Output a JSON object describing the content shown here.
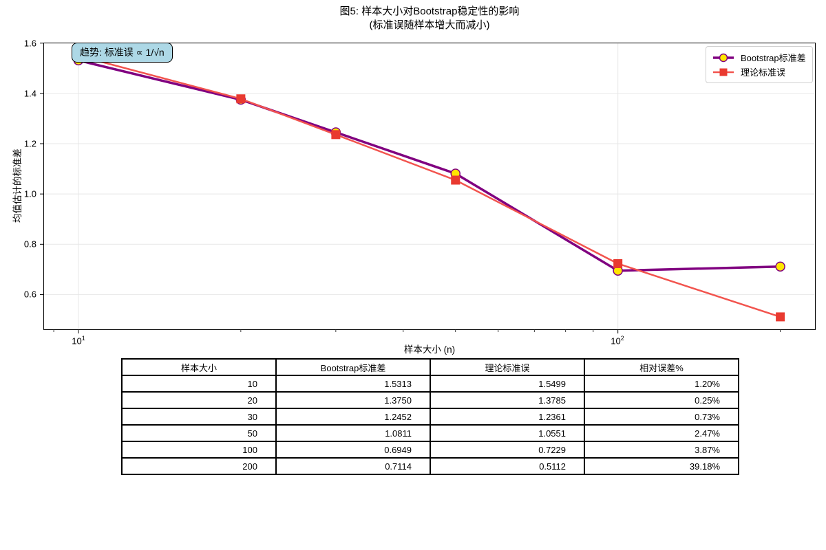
{
  "title": {
    "line1": "图5: 样本大小对Bootstrap稳定性的影响",
    "line2": "(标准误随样本增大而减小)"
  },
  "annotation": {
    "text": "趋势: 标准误 ∝ 1/√n",
    "bg_color": "#ADD8E6"
  },
  "chart_data": {
    "type": "line",
    "x": [
      10,
      20,
      30,
      50,
      100,
      200
    ],
    "x_scale": "log",
    "series": [
      {
        "name": "Bootstrap标准差",
        "values": [
          1.5313,
          1.375,
          1.2452,
          1.0811,
          0.6949,
          0.7114
        ],
        "color": "#800080",
        "line_width": 3.5,
        "marker": "circle",
        "marker_fill": "#FFE600",
        "marker_edge": "#800080"
      },
      {
        "name": "理论标准误",
        "values": [
          1.5499,
          1.3785,
          1.2361,
          1.0551,
          0.7229,
          0.5112
        ],
        "color": "#F2544E",
        "line_width": 2.5,
        "marker": "square",
        "marker_fill": "#E93A30",
        "marker_edge": "#E93A30"
      }
    ],
    "xlabel": "样本大小 (n)",
    "ylabel": "均值估计的标准差",
    "xlim": [
      8.61,
      232.6
    ],
    "ylim": [
      0.459,
      1.602
    ],
    "yticks": [
      0.6,
      0.8,
      1.0,
      1.2,
      1.4,
      1.6
    ],
    "xticks_major": [
      {
        "value": 10,
        "base": "10",
        "exp": "1"
      },
      {
        "value": 100,
        "base": "10",
        "exp": "2"
      }
    ],
    "xticks_minor": [
      9,
      20,
      30,
      40,
      50,
      60,
      70,
      80,
      90,
      200
    ],
    "grid": true,
    "grid_color": "#e7e7e7",
    "legend_position": "upper right"
  },
  "table": {
    "headers": [
      "样本大小",
      "Bootstrap标准差",
      "理论标准误",
      "相对误差%"
    ],
    "rows": [
      [
        "10",
        "1.5313",
        "1.5499",
        "1.20%"
      ],
      [
        "20",
        "1.3750",
        "1.3785",
        "0.25%"
      ],
      [
        "30",
        "1.2452",
        "1.2361",
        "0.73%"
      ],
      [
        "50",
        "1.0811",
        "1.0551",
        "2.47%"
      ],
      [
        "100",
        "0.6949",
        "0.7229",
        "3.87%"
      ],
      [
        "200",
        "0.7114",
        "0.5112",
        "39.18%"
      ]
    ]
  }
}
